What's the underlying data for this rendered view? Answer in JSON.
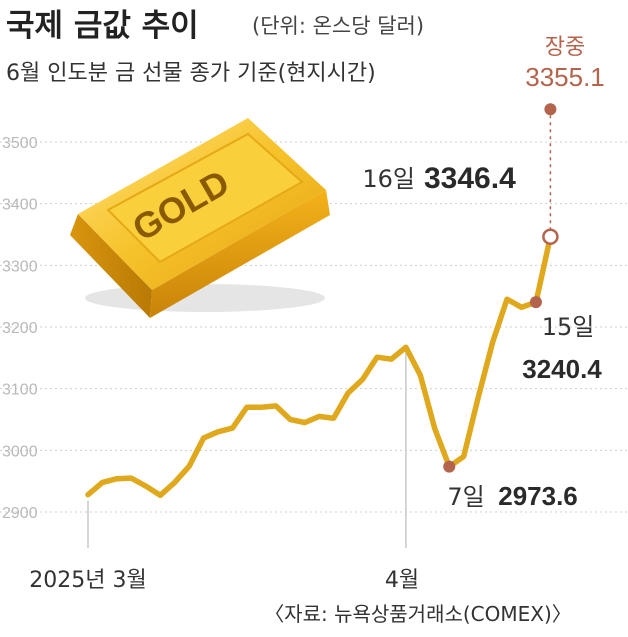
{
  "title": "국제 금값 추이",
  "unit": "(단위: 온스당 달러)",
  "subtitle": "6월 인도분 금 선물 종가 기준(현지시간)",
  "source": "〈자료: 뉴욕상품거래소(COMEX)〉",
  "gold_bar_label": "GOLD",
  "colors": {
    "line": "#e0a81c",
    "marker": "#b4644c",
    "grid": "#cfcfcf",
    "intraday": "#b4644c"
  },
  "chart_data": {
    "type": "line",
    "title": "국제 금값 추이",
    "ylabel": "",
    "xlabel": "",
    "ylim": [
      2880,
      3560
    ],
    "yticks": [
      2900,
      3000,
      3100,
      3200,
      3300,
      3400,
      3500
    ],
    "ytick_labels": [
      "2900",
      "3000",
      "3100",
      "3200",
      "3300",
      "3400",
      "3500"
    ],
    "grid": true,
    "x_labels": [
      {
        "label": "2025년 3월",
        "index": 0
      },
      {
        "label": "4월",
        "index": 22
      }
    ],
    "series": [
      {
        "values": [
          2928,
          2948,
          2954,
          2955,
          2942,
          2927,
          2948,
          2974,
          3020,
          3030,
          3036,
          3070,
          3070,
          3072,
          3050,
          3045,
          3055,
          3052,
          3093,
          3115,
          3151,
          3148,
          3167,
          3122,
          3035,
          2973.6,
          2990,
          3085,
          3175,
          3245,
          3232,
          3240.4,
          3346.4
        ]
      }
    ],
    "annotations": [
      {
        "day": "7일",
        "value": "2973.6",
        "index": 25
      },
      {
        "day": "15일",
        "value": "3240.4",
        "index": 31
      },
      {
        "day": "16일",
        "value": "3346.4",
        "index": 32
      }
    ],
    "intraday": {
      "label": "장중",
      "value": "3355.1",
      "plot_value": 3553
    }
  }
}
